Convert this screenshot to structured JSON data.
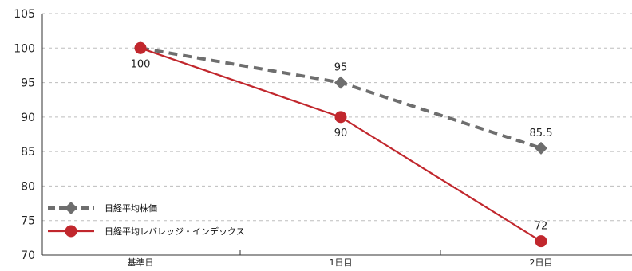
{
  "chart_data": {
    "type": "line",
    "categories": [
      "基準日",
      "1日目",
      "2日目"
    ],
    "series": [
      {
        "name": "日経平均株価",
        "values": [
          100,
          95,
          85.5
        ],
        "labels": [
          "",
          "95",
          "85.5"
        ],
        "color": "#6e6e6e",
        "marker": "diamond",
        "line_style": "dashed"
      },
      {
        "name": "日経平均レバレッジ・インデックス",
        "values": [
          100,
          90,
          72
        ],
        "labels": [
          "100",
          "90",
          "72"
        ],
        "color": "#c1272d",
        "marker": "circle",
        "line_style": "solid"
      }
    ],
    "y_ticks": [
      "105",
      "100",
      "95",
      "90",
      "85",
      "80",
      "75",
      "70"
    ],
    "ylim": [
      70,
      105
    ],
    "grid": "horizontal dashed",
    "legend_position": "bottom-left",
    "title": "",
    "xlabel": "",
    "ylabel": ""
  }
}
